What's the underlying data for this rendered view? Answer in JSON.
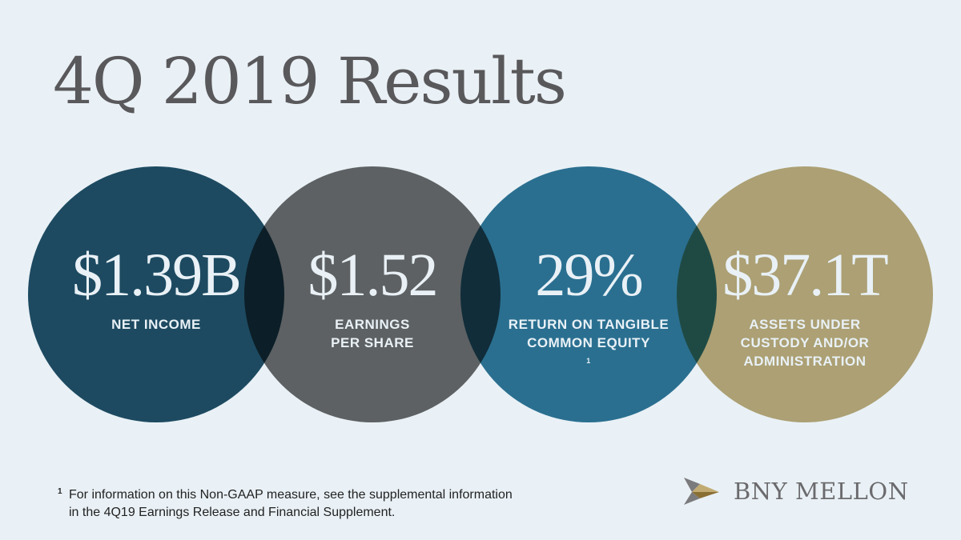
{
  "title": "4Q 2019 Results",
  "metrics": [
    {
      "value": "$1.39B",
      "label_lines": [
        "NET INCOME"
      ],
      "color": "#1f4e64"
    },
    {
      "value": "$1.52",
      "label_lines": [
        "EARNINGS",
        "PER SHARE"
      ],
      "color": "#666666"
    },
    {
      "value": "29%",
      "label_lines": [
        "RETURN ON TANGIBLE",
        "COMMON EQUITY"
      ],
      "label_footnote": "1",
      "color": "#2e7595"
    },
    {
      "value": "$37.1T",
      "label_lines": [
        "ASSETS UNDER",
        "CUSTODY AND/OR",
        "ADMINISTRATION"
      ],
      "color": "#bca978"
    }
  ],
  "footnote": {
    "marker": "1",
    "lines": [
      "For information on this Non-GAAP measure, see the supplemental information",
      "in the 4Q19 Earnings Release and Financial Supplement."
    ]
  },
  "brand": {
    "name": "BNY MELLON"
  }
}
